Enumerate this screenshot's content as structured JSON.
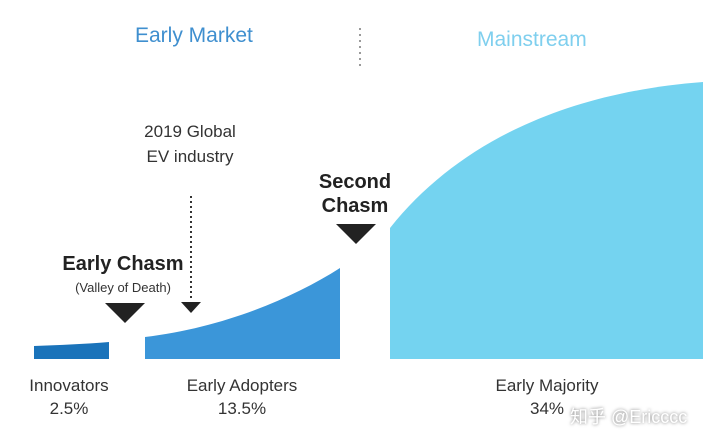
{
  "phases": {
    "early_market": "Early Market",
    "mainstream": "Mainstream"
  },
  "chasms": {
    "early": {
      "title": "Early Chasm",
      "subtitle": "(Valley of Death)"
    },
    "second": {
      "line1": "Second",
      "line2": "Chasm"
    }
  },
  "annotation": {
    "line1": "2019 Global",
    "line2": "EV industry"
  },
  "segments": [
    {
      "label": "Innovators",
      "share": "2.5%",
      "color": "#1a73ba"
    },
    {
      "label": "Early Adopters",
      "share": "13.5%",
      "color": "#3b96d9"
    },
    {
      "label": "Early Majority",
      "share": "34%",
      "color": "#74d3f0"
    }
  ],
  "colors": {
    "early_market_text": "#3f8fcf",
    "mainstream_text": "#7fcfee",
    "marker": "#222222",
    "divider": "#9a9a9a"
  },
  "watermark": "知乎 @Ericccc"
}
